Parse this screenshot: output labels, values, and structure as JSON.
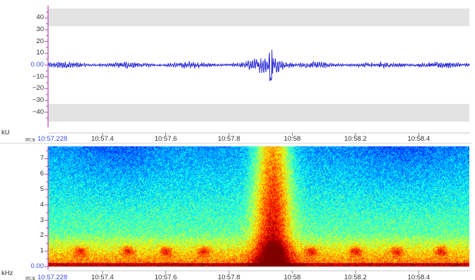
{
  "waveform": {
    "unit": "kU",
    "y_ticks": [
      "40",
      "30",
      "20",
      "10",
      "0.00",
      "−10",
      "−20",
      "−30",
      "−40"
    ],
    "y_values": [
      40,
      30,
      20,
      10,
      0,
      -10,
      -20,
      -30,
      -40
    ],
    "y_range": [
      -48,
      48
    ],
    "clip_level": 33,
    "line_color": "#2a2ad8",
    "zero_color": "#3b4fd8",
    "band_color": "#e3e3e3",
    "axis_color": "#b04ab0",
    "time_axis": {
      "prefix": "m:s",
      "start": "10:57.228",
      "labels": [
        "10:57.4",
        "10:57.6",
        "10:57.8",
        "10:58",
        "10:58.2",
        "10:58.4"
      ]
    }
  },
  "spectrogram": {
    "unit": "kHz",
    "y_ticks": [
      "7",
      "6",
      "5",
      "4",
      "3",
      "2",
      "1",
      "0.00"
    ],
    "y_values": [
      7,
      6,
      5,
      4,
      3,
      2,
      1,
      0
    ],
    "y_range": [
      0,
      7.8
    ],
    "colormap": "jet",
    "time_axis": {
      "prefix": "m:s",
      "start": "10:57.228",
      "labels": [
        "10:57.4",
        "10:57.6",
        "10:57.8",
        "10:58",
        "10:58.2",
        "10:58.4"
      ]
    }
  },
  "time_values_s": [
    0.4,
    0.6,
    0.8,
    1.0,
    1.2,
    1.4
  ],
  "time_range_s": [
    0.228,
    1.56
  ]
}
